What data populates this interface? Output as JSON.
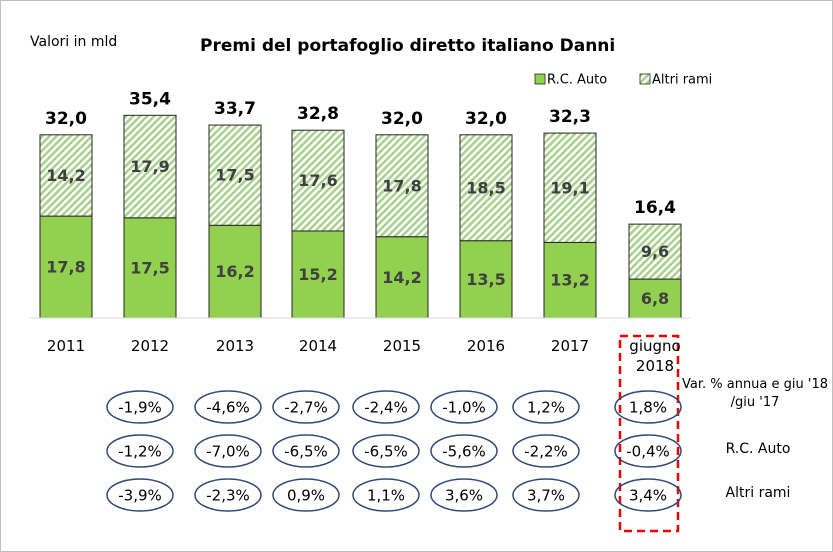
{
  "chart_data": {
    "type": "stacked-bar",
    "title": "Premi del portafoglio diretto italiano Danni",
    "subtitle": "Valori in mld",
    "categories": [
      "2011",
      "2012",
      "2013",
      "2014",
      "2015",
      "2016",
      "2017",
      "giugno 2018"
    ],
    "series": [
      {
        "name": "R.C. Auto",
        "color": "#92d050",
        "pattern": "solid",
        "values": [
          17.8,
          17.5,
          16.2,
          15.2,
          14.2,
          13.5,
          13.2,
          6.8
        ],
        "value_labels": [
          "17,8",
          "17,5",
          "16,2",
          "15,2",
          "14,2",
          "13,5",
          "13,2",
          "6,8"
        ]
      },
      {
        "name": "Altri rami",
        "color": "#a9d18e",
        "pattern": "hatch",
        "values": [
          14.2,
          17.9,
          17.5,
          17.6,
          17.8,
          18.5,
          19.1,
          9.6
        ],
        "value_labels": [
          "14,2",
          "17,9",
          "17,5",
          "17,6",
          "17,8",
          "18,5",
          "19,1",
          "9,6"
        ]
      }
    ],
    "totals": {
      "values": [
        32.0,
        35.4,
        33.7,
        32.8,
        32.0,
        32.0,
        32.3,
        16.4
      ],
      "value_labels": [
        "32,0",
        "35,4",
        "33,7",
        "32,8",
        "32,0",
        "32,0",
        "32,3",
        "16,4"
      ]
    },
    "ylim": [
      0,
      40
    ],
    "legend": "top-right",
    "variations": {
      "rows": [
        {
          "label": "Var. % annua e giu '18 /giu '17",
          "cells": [
            "-1,9%",
            "-4,6%",
            "-2,7%",
            "-2,4%",
            "-1,0%",
            "1,2%",
            "1,8%"
          ]
        },
        {
          "label": "R.C. Auto",
          "cells": [
            "-1,2%",
            "-7,0%",
            "-6,5%",
            "-6,5%",
            "-5,6%",
            "-2,2%",
            "-0,4%"
          ]
        },
        {
          "label": "Altri rami",
          "cells": [
            "-3,9%",
            "-2,3%",
            "0,9%",
            "1,1%",
            "3,6%",
            "3,7%",
            "3,4%"
          ]
        }
      ]
    }
  }
}
